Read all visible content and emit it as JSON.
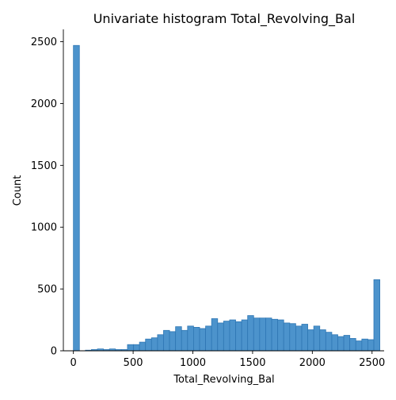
{
  "chart_data": {
    "type": "bar",
    "title": "Univariate histogram Total_Revolving_Bal",
    "xlabel": "Total_Revolving_Bal",
    "ylabel": "Count",
    "xlim": [
      -84,
      2601
    ],
    "ylim": [
      0,
      2600
    ],
    "xticks": [
      0,
      500,
      1000,
      1500,
      2000,
      2500
    ],
    "yticks": [
      0,
      500,
      1000,
      1500,
      2000,
      2500
    ],
    "bin_width": 50.3,
    "bin_start": 0,
    "values": [
      2470,
      0,
      5,
      10,
      15,
      10,
      15,
      10,
      10,
      50,
      50,
      70,
      95,
      105,
      130,
      165,
      155,
      195,
      165,
      200,
      190,
      180,
      200,
      260,
      225,
      240,
      250,
      235,
      250,
      285,
      265,
      265,
      265,
      255,
      250,
      225,
      220,
      200,
      215,
      170,
      200,
      170,
      150,
      130,
      115,
      125,
      100,
      80,
      95,
      90,
      575
    ],
    "bar_color": "#4c93cc",
    "edge_color": "#2f77b4"
  }
}
